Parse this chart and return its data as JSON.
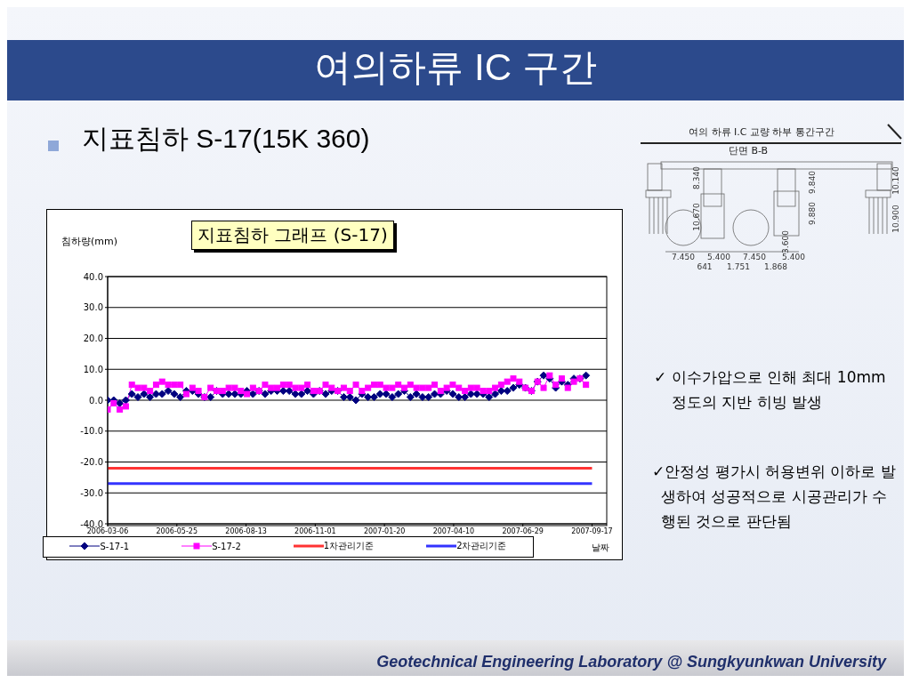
{
  "chart_data": {
    "type": "line",
    "title": "지표침하 그래프 (S-17)",
    "xlabel": "날짜",
    "ylabel": "침하량(mm)",
    "x": [
      "2006-03-06",
      "2006-03-13",
      "2006-03-20",
      "2006-03-27",
      "2006-04-03",
      "2006-04-10",
      "2006-04-17",
      "2006-04-24",
      "2006-05-01",
      "2006-05-08",
      "2006-05-15",
      "2006-05-22",
      "2006-05-29",
      "2006-06-05",
      "2006-06-12",
      "2006-06-19",
      "2006-06-26",
      "2006-07-03",
      "2006-07-10",
      "2006-07-17",
      "2006-07-24",
      "2006-07-31",
      "2006-08-07",
      "2006-08-14",
      "2006-08-21",
      "2006-08-28",
      "2006-09-04",
      "2006-09-11",
      "2006-09-18",
      "2006-09-25",
      "2006-10-02",
      "2006-10-09",
      "2006-10-16",
      "2006-10-23",
      "2006-10-30",
      "2006-11-06",
      "2006-11-13",
      "2006-11-20",
      "2006-11-27",
      "2006-12-04",
      "2006-12-11",
      "2006-12-18",
      "2006-12-25",
      "2007-01-01",
      "2007-01-08",
      "2007-01-15",
      "2007-01-22",
      "2007-01-29",
      "2007-02-05",
      "2007-02-12",
      "2007-02-19",
      "2007-02-26",
      "2007-03-05",
      "2007-03-12",
      "2007-03-19",
      "2007-03-26",
      "2007-04-02",
      "2007-04-09",
      "2007-04-16",
      "2007-04-23",
      "2007-04-30",
      "2007-05-07",
      "2007-05-14",
      "2007-05-21",
      "2007-05-28",
      "2007-06-04",
      "2007-06-11",
      "2007-06-18",
      "2007-06-25",
      "2007-07-02",
      "2007-07-09",
      "2007-07-16",
      "2007-07-23",
      "2007-07-30",
      "2007-08-06",
      "2007-08-13",
      "2007-08-20",
      "2007-08-27",
      "2007-09-03",
      "2007-09-10"
    ],
    "series": [
      {
        "name": "S-17-1",
        "color": "#000080",
        "marker": "diamond",
        "values": [
          0,
          0,
          -1,
          0,
          2,
          1,
          2,
          1,
          2,
          2,
          3,
          2,
          1,
          3,
          3,
          2,
          1,
          1,
          3,
          2,
          2,
          2,
          2,
          3,
          2,
          3,
          2,
          3,
          3,
          3,
          3,
          2,
          2,
          3,
          2,
          3,
          2,
          3,
          3,
          1,
          1,
          0,
          2,
          1,
          1,
          2,
          2,
          1,
          2,
          3,
          1,
          2,
          1,
          1,
          2,
          2,
          3,
          2,
          1,
          1,
          2,
          2,
          2,
          1,
          2,
          3,
          3,
          4,
          5,
          4,
          3,
          6,
          8,
          7,
          4,
          6,
          5,
          7,
          7,
          8
        ]
      },
      {
        "name": "S-17-2",
        "color": "#ff00ff",
        "marker": "square",
        "values": [
          -3,
          -1,
          -3,
          -2,
          5,
          4,
          4,
          3,
          5,
          6,
          5,
          5,
          5,
          2,
          4,
          3,
          1,
          4,
          3,
          3,
          4,
          4,
          3,
          2,
          4,
          3,
          5,
          4,
          4,
          5,
          5,
          4,
          4,
          5,
          3,
          3,
          5,
          4,
          3,
          4,
          3,
          5,
          3,
          4,
          5,
          5,
          4,
          4,
          5,
          4,
          5,
          4,
          4,
          4,
          5,
          3,
          4,
          5,
          4,
          3,
          4,
          4,
          3,
          3,
          4,
          5,
          6,
          7,
          6,
          4,
          3,
          6,
          4,
          8,
          5,
          7,
          4,
          6,
          7,
          5
        ]
      },
      {
        "name": "1차관리기준",
        "color": "#ff3333",
        "marker": "none",
        "x": [
          "2006-03-06",
          "2007-09-17"
        ],
        "values": [
          -22,
          -22
        ]
      },
      {
        "name": "2차관리기준",
        "color": "#3333ff",
        "marker": "none",
        "x": [
          "2006-03-06",
          "2007-09-17"
        ],
        "values": [
          -27,
          -27
        ]
      }
    ],
    "xlim": [
      "2006-03-06",
      "2007-10-04"
    ],
    "xticks": [
      "2006-03-06",
      "2006-05-25",
      "2006-08-13",
      "2006-11-01",
      "2007-01-20",
      "2007-04-10",
      "2007-06-29",
      "2007-09-17"
    ],
    "ylim": [
      -40,
      40
    ],
    "yticks": [
      {
        "value": -40,
        "label": "-40.0"
      },
      {
        "value": -30,
        "label": "-30.0"
      },
      {
        "value": -20,
        "label": "-20.0"
      },
      {
        "value": -10,
        "label": "-10.0"
      },
      {
        "value": 0,
        "label": "0.0"
      },
      {
        "value": 10,
        "label": "10.0"
      },
      {
        "value": 20,
        "label": "20.0"
      },
      {
        "value": 30,
        "label": "30.0"
      },
      {
        "value": 40,
        "label": "40.0"
      }
    ],
    "grid": "y",
    "legend": "bottom",
    "line_style": "solid",
    "annotations": [
      "여의하류 IC 구간",
      "지표침하 S-17(15K 360)",
      "✓ 이수가압으로 인해 최대 10mm 정도의 지반 히빙 발생",
      "✓안정성 평가시 허용변위 이하로 발생하여 성공적으로 시공관리가 수행된 것으로 판단됨",
      "Geotechnical Engineering Laboratory @ Sungkyunkwan University",
      "여의 하류 I.C 교량 하부 통간구간",
      "단면 B-B",
      "8.340",
      "9.840",
      "10.140",
      "10.670",
      "9.880",
      "10.900",
      "3.600",
      "7.450",
      "5.400",
      "7.450",
      "5.400",
      "641",
      "1.751",
      "1.868"
    ]
  }
}
